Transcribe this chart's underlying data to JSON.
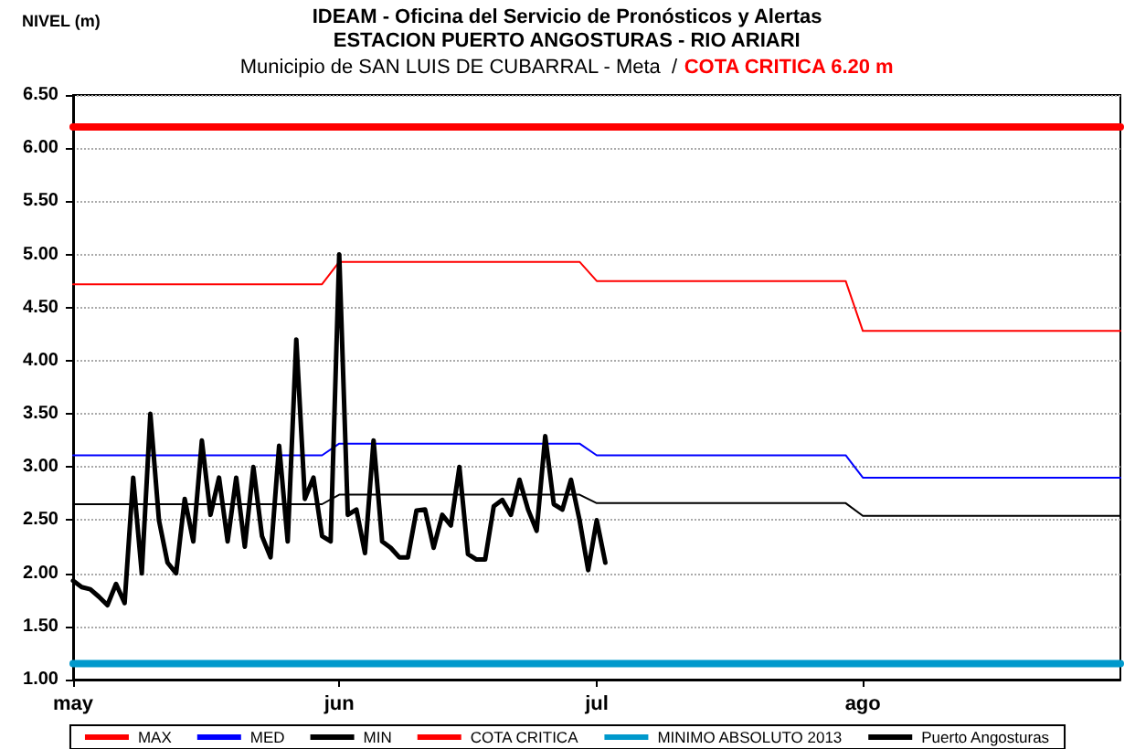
{
  "chart_data": {
    "type": "line",
    "title": "IDEAM - Oficina del Servicio de Pronósticos y Alertas",
    "subtitle": "ESTACION PUERTO ANGOSTURAS - RIO ARIARI",
    "annotations": [
      "Municipio de SAN LUIS DE CUBARRAL - Meta  /",
      "COTA CRITICA 6.20 m"
    ],
    "ylabel": "NIVEL (m)",
    "xlim": [
      "--05-01",
      "--08-31"
    ],
    "xticks": [
      {
        "value": "--05-01",
        "label": "may"
      },
      {
        "value": "--06-01",
        "label": "jun"
      },
      {
        "value": "--07-01",
        "label": "jul"
      },
      {
        "value": "--08-01",
        "label": "ago"
      }
    ],
    "ylim": [
      1.0,
      6.5
    ],
    "yticks": [
      {
        "value": 1.0,
        "label": "1.00"
      },
      {
        "value": 1.5,
        "label": "1.50"
      },
      {
        "value": 2.0,
        "label": "2.00"
      },
      {
        "value": 2.5,
        "label": "2.50"
      },
      {
        "value": 3.0,
        "label": "3.00"
      },
      {
        "value": 3.5,
        "label": "3.50"
      },
      {
        "value": 4.0,
        "label": "4.00"
      },
      {
        "value": 4.5,
        "label": "4.50"
      },
      {
        "value": 5.0,
        "label": "5.00"
      },
      {
        "value": 5.5,
        "label": "5.50"
      },
      {
        "value": 6.0,
        "label": "6.00"
      },
      {
        "value": 6.5,
        "label": "6.50"
      }
    ],
    "grid": "y",
    "legend": "bottom",
    "marker": "none",
    "line_style": "solid",
    "series": [
      {
        "name": "MAX",
        "color": "#ff0000",
        "x": [
          "--05-01",
          "--05-30",
          "--06-01",
          "--06-29",
          "--07-01",
          "--07-30",
          "--08-01",
          "--08-31"
        ],
        "values": [
          4.72,
          4.72,
          4.93,
          4.93,
          4.75,
          4.75,
          4.28,
          4.28
        ]
      },
      {
        "name": "MED",
        "color": "#0000ff",
        "x": [
          "--05-01",
          "--05-30",
          "--06-01",
          "--06-29",
          "--07-01",
          "--07-30",
          "--08-01",
          "--08-31"
        ],
        "values": [
          3.11,
          3.11,
          3.22,
          3.22,
          3.11,
          3.11,
          2.9,
          2.9
        ]
      },
      {
        "name": "MIN",
        "color": "#000000",
        "x": [
          "--05-01",
          "--05-30",
          "--06-01",
          "--06-29",
          "--07-01",
          "--07-30",
          "--08-01",
          "--08-31"
        ],
        "values": [
          2.65,
          2.65,
          2.74,
          2.74,
          2.66,
          2.66,
          2.54,
          2.54
        ]
      },
      {
        "name": "COTA CRITICA",
        "color": "#ff0000",
        "x": [
          "--05-01",
          "--08-31"
        ],
        "values": [
          6.2,
          6.2
        ]
      },
      {
        "name": "MINIMO ABSOLUTO 2013",
        "color": "#0099cc",
        "x": [
          "--05-01",
          "--08-31"
        ],
        "values": [
          1.15,
          1.15
        ]
      },
      {
        "name": "Puerto Angosturas",
        "color": "#000000",
        "x": [
          "--05-01",
          "--05-02",
          "--05-03",
          "--05-04",
          "--05-05",
          "--05-06",
          "--05-07",
          "--05-08",
          "--05-09",
          "--05-10",
          "--05-11",
          "--05-12",
          "--05-13",
          "--05-14",
          "--05-15",
          "--05-16",
          "--05-17",
          "--05-18",
          "--05-19",
          "--05-20",
          "--05-21",
          "--05-22",
          "--05-23",
          "--05-24",
          "--05-25",
          "--05-26",
          "--05-27",
          "--05-28",
          "--05-29",
          "--05-30",
          "--05-31",
          "--06-01",
          "--06-02",
          "--06-03",
          "--06-04",
          "--06-05",
          "--06-06",
          "--06-07",
          "--06-08",
          "--06-09",
          "--06-10",
          "--06-11",
          "--06-12",
          "--06-13",
          "--06-14",
          "--06-15",
          "--06-16",
          "--06-17",
          "--06-18",
          "--06-19",
          "--06-20",
          "--06-21",
          "--06-22",
          "--06-23",
          "--06-24",
          "--06-25",
          "--06-26",
          "--06-27",
          "--06-28",
          "--06-29",
          "--06-30",
          "--07-01",
          "--07-02"
        ],
        "values": [
          1.93,
          1.87,
          1.85,
          1.78,
          1.7,
          1.9,
          1.72,
          2.9,
          2.0,
          3.5,
          2.5,
          2.1,
          2.0,
          2.7,
          2.3,
          3.25,
          2.55,
          2.9,
          2.3,
          2.9,
          2.25,
          3.0,
          2.35,
          2.15,
          3.2,
          2.3,
          4.2,
          2.7,
          2.9,
          2.35,
          2.3,
          5.0,
          2.55,
          2.6,
          2.19,
          3.25,
          2.3,
          2.24,
          2.15,
          2.15,
          2.59,
          2.6,
          2.24,
          2.55,
          2.45,
          3.0,
          2.18,
          2.13,
          2.13,
          2.63,
          2.69,
          2.55,
          2.88,
          2.6,
          2.4,
          3.29,
          2.65,
          2.6,
          2.88,
          2.5,
          2.03,
          2.5,
          2.1
        ]
      }
    ]
  }
}
